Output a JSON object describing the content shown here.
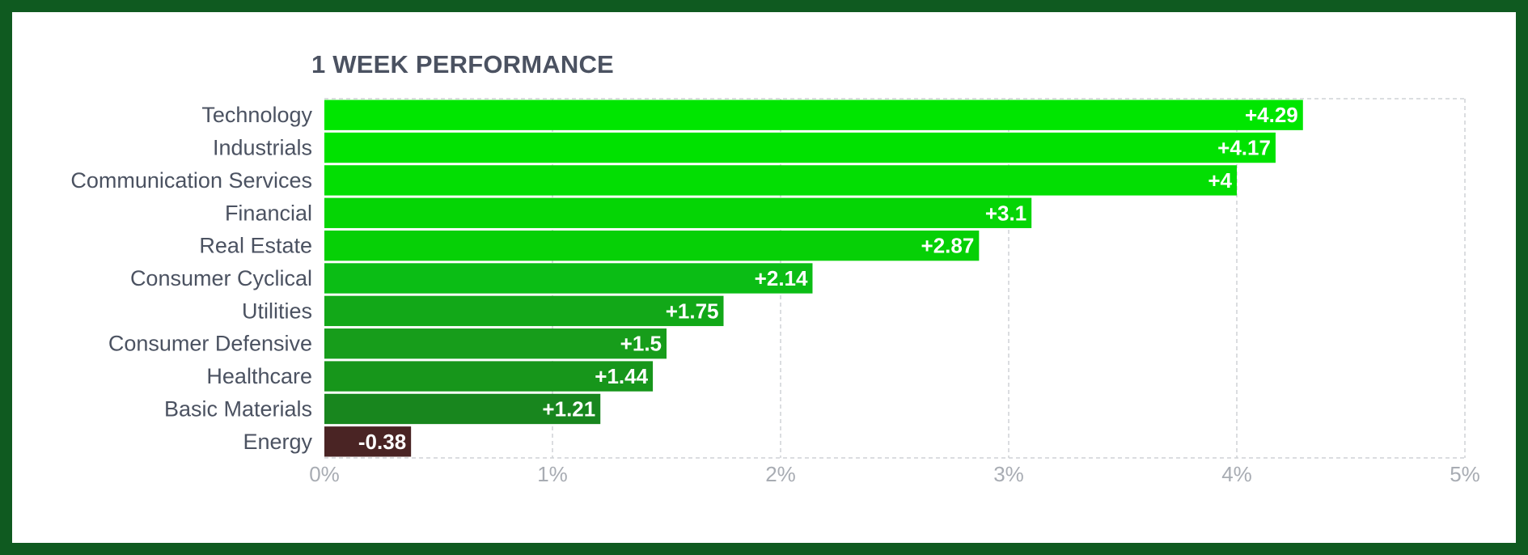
{
  "chart_data": {
    "type": "bar",
    "orientation": "horizontal",
    "title": "1 WEEK PERFORMANCE",
    "categories": [
      "Technology",
      "Industrials",
      "Communication Services",
      "Financial",
      "Real Estate",
      "Consumer Cyclical",
      "Utilities",
      "Consumer Defensive",
      "Healthcare",
      "Basic Materials",
      "Energy"
    ],
    "values": [
      4.29,
      4.17,
      4,
      3.1,
      2.87,
      2.14,
      1.75,
      1.5,
      1.44,
      1.21,
      -0.38
    ],
    "value_labels": [
      "+4.29",
      "+4.17",
      "+4",
      "+3.1",
      "+2.87",
      "+2.14",
      "+1.75",
      "+1.5",
      "+1.44",
      "+1.21",
      "-0.38"
    ],
    "bar_colors": [
      "#00e600",
      "#00e200",
      "#03de03",
      "#05d505",
      "#06d006",
      "#0bbd15",
      "#12a818",
      "#179d1b",
      "#17961b",
      "#18861e",
      "#4a2424"
    ],
    "xlim": [
      0,
      5
    ],
    "x_ticks": [
      0,
      1,
      2,
      3,
      4,
      5
    ],
    "x_tick_labels": [
      "0%",
      "1%",
      "2%",
      "3%",
      "4%",
      "5%"
    ],
    "grid": true,
    "xlabel": "",
    "ylabel": ""
  },
  "colors": {
    "frame": "#0f5a20",
    "background": "#ffffff",
    "text": "#4b5261",
    "tick_text": "#a8acb3",
    "grid": "#cfd2d6"
  }
}
